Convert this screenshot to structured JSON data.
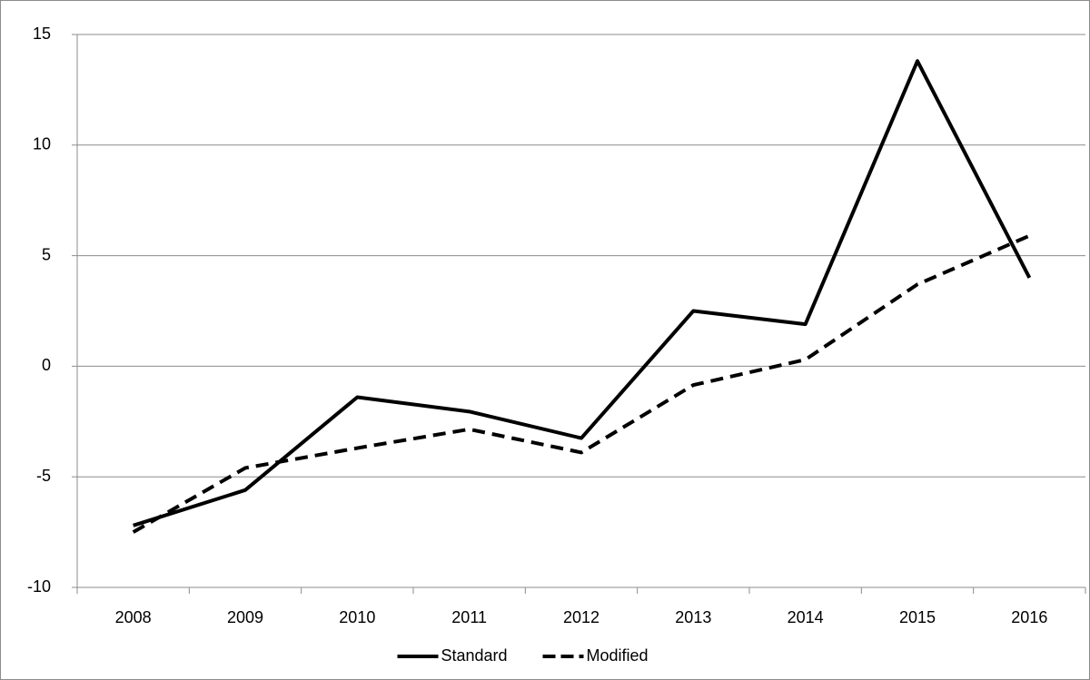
{
  "chart_data": {
    "type": "line",
    "categories": [
      "2008",
      "2009",
      "2010",
      "2011",
      "2012",
      "2013",
      "2014",
      "2015",
      "2016"
    ],
    "series": [
      {
        "name": "Standard",
        "color": "#000000",
        "dash": "solid",
        "values": [
          -7.2,
          -5.6,
          -1.4,
          -2.05,
          -3.25,
          2.5,
          1.9,
          13.8,
          4.0
        ]
      },
      {
        "name": "Modified",
        "color": "#000000",
        "dash": "dashed",
        "values": [
          -7.5,
          -4.6,
          -3.7,
          -2.85,
          -3.9,
          -0.85,
          0.3,
          3.7,
          5.9
        ]
      }
    ],
    "ylim": [
      -10,
      15
    ],
    "yticks": [
      -10,
      -5,
      0,
      5,
      10,
      15
    ],
    "grid": true,
    "legend": "bottom"
  }
}
